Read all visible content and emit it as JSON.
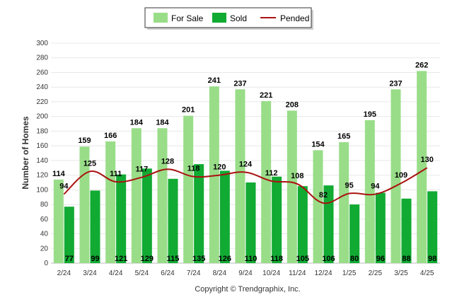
{
  "chart_data": {
    "type": "bar",
    "categories": [
      "2/24",
      "3/24",
      "4/24",
      "5/24",
      "6/24",
      "7/24",
      "8/24",
      "9/24",
      "10/24",
      "11/24",
      "12/24",
      "1/25",
      "2/25",
      "3/25",
      "4/25"
    ],
    "series": [
      {
        "name": "For Sale",
        "type": "bar",
        "color": "#99dd88",
        "values": [
          114,
          159,
          166,
          184,
          184,
          201,
          241,
          237,
          221,
          208,
          154,
          165,
          195,
          237,
          262
        ]
      },
      {
        "name": "Sold",
        "type": "bar",
        "color": "#11aa33",
        "values": [
          77,
          99,
          121,
          129,
          115,
          135,
          126,
          110,
          118,
          105,
          106,
          80,
          96,
          88,
          98
        ]
      },
      {
        "name": "Pended",
        "type": "line",
        "color": "#aa1111",
        "values": [
          94,
          125,
          111,
          117,
          128,
          118,
          120,
          124,
          112,
          108,
          82,
          95,
          94,
          109,
          130
        ]
      }
    ],
    "ylabel": "Number of Homes",
    "xlabel": "",
    "ylim": [
      0,
      300
    ],
    "yticks": [
      0,
      20,
      40,
      60,
      80,
      100,
      120,
      140,
      160,
      180,
      200,
      220,
      240,
      260,
      280,
      300
    ],
    "grid": true,
    "legend": "top-center",
    "footer": "Copyright © Trendgraphix, Inc."
  }
}
